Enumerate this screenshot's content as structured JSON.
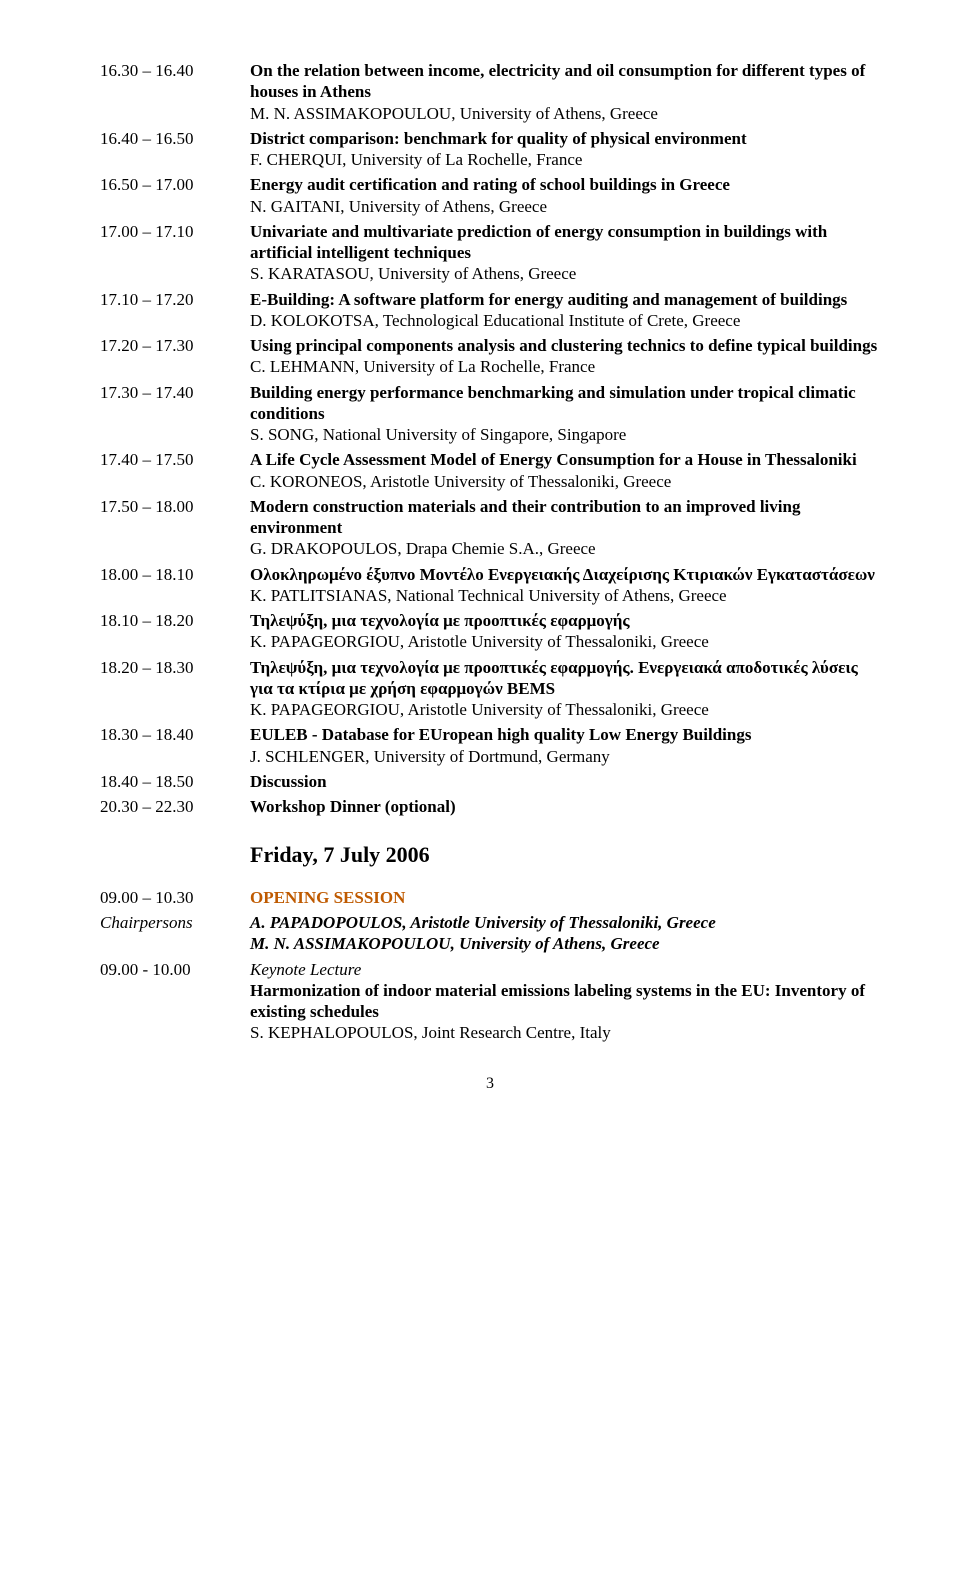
{
  "schedule": [
    {
      "time": "16.30 – 16.40",
      "title": "On the relation between income, electricity and oil consumption for different types of houses in Athens",
      "author": "M. N. ASSIMAKOPOULOU, University of Athens, Greece"
    },
    {
      "time": "16.40 – 16.50",
      "title": "District comparison: benchmark for quality of physical environment",
      "author": "F. CHERQUI, University of La Rochelle, France"
    },
    {
      "time": "16.50 – 17.00",
      "title": "Energy audit certification and rating of school buildings in Greece",
      "author": "N. GAITANI, University of Athens, Greece"
    },
    {
      "time": "17.00 – 17.10",
      "title": "Univariate and multivariate prediction of energy consumption in buildings with artificial intelligent techniques",
      "author": "S. KARATASOU, University of Athens, Greece"
    },
    {
      "time": "17.10 – 17.20",
      "title": "E-Building: A software platform for energy auditing and management of buildings",
      "author": "D. KOLOKOTSA, Technological Educational Institute of Crete, Greece"
    },
    {
      "time": "17.20 – 17.30",
      "title": "Using principal components analysis and clustering technics to define typical buildings",
      "author": "C. LEHMANN, University of La Rochelle, France"
    },
    {
      "time": "17.30 – 17.40",
      "title": "Building energy performance benchmarking and simulation under tropical climatic conditions",
      "author": "S. SONG, National University of Singapore, Singapore"
    },
    {
      "time": "17.40 – 17.50",
      "title": "A Life Cycle Assessment Model of Energy Consumption for a House in Thessaloniki",
      "author": "C. KORONEOS, Aristotle University of Thessaloniki, Greece"
    },
    {
      "time": "17.50 – 18.00",
      "title": "Modern construction materials and their contribution to an improved living environment",
      "author": "G. DRAKOPOULOS, Drapa Chemie S.A., Greece"
    },
    {
      "time": "18.00 – 18.10",
      "title": "Ολοκληρωμένο έξυπνο Μοντέλο Ενεργειακής Διαχείρισης Κτιριακών Εγκαταστάσεων",
      "author": "K. PATLITSIANAS, National Technical University of Athens, Greece"
    },
    {
      "time": "18.10 – 18.20",
      "title": "Τηλεψύξη, μια τεχνολογία με προοπτικές εφαρμογής",
      "author": "K. PAPAGEORGIOU, Aristotle University of Thessaloniki, Greece"
    },
    {
      "time": "18.20 – 18.30",
      "title": "Τηλεψύξη, μια τεχνολογία με προοπτικές εφαρμογής. Ενεργειακά αποδοτικές λύσεις για τα κτίρια με χρήση εφαρμογών BEMS",
      "author": "K. PAPAGEORGIOU, Aristotle University of Thessaloniki, Greece"
    },
    {
      "time": "18.30 – 18.40",
      "title": "EULEB - Database for EUropean high quality Low Energy Buildings",
      "author": "J. SCHLENGER, University of Dortmund, Germany"
    },
    {
      "time": "18.40 – 18.50",
      "title": "Discussion",
      "author": ""
    },
    {
      "time": "20.30 – 22.30",
      "title": "Workshop Dinner (optional)",
      "author": ""
    }
  ],
  "day_heading": "Friday, 7 July 2006",
  "opening": {
    "time": "09.00 – 10.30",
    "label": "OPENING SESSION"
  },
  "chairpersons": {
    "label": "Chairpersons",
    "line1": "A. PAPADOPOULOS, Aristotle University of Thessaloniki, Greece",
    "line2": "M. N. ASSIMAKOPOULOU, University of Athens, Greece"
  },
  "keynote": {
    "time": "09.00 - 10.00",
    "lecture_label": "Keynote Lecture",
    "title": "Harmonization of indoor material emissions labeling systems in the EU: Inventory of existing schedules",
    "author": "S. KEPHALOPOULOS, Joint Research Centre, Italy"
  },
  "page_number": "3"
}
